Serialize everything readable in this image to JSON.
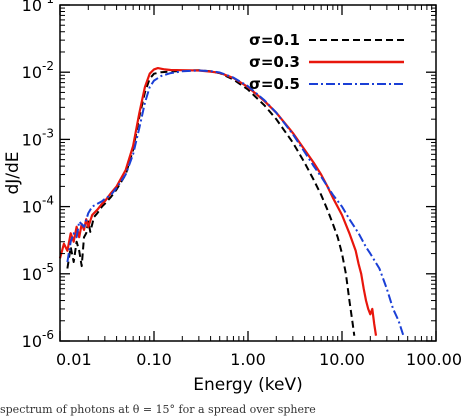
{
  "chart_data": {
    "type": "line",
    "title": "",
    "xlabel": "Energy (keV)",
    "ylabel": "dJ/dE",
    "xscale": "log",
    "yscale": "log",
    "xlim": [
      0.01,
      100
    ],
    "ylim": [
      1e-06,
      0.1
    ],
    "xticks": [
      {
        "value": 0.01,
        "label": "0.01"
      },
      {
        "value": 0.1,
        "label": "0.10"
      },
      {
        "value": 1,
        "label": "1.00"
      },
      {
        "value": 10,
        "label": "10.00"
      },
      {
        "value": 100,
        "label": "100.00"
      }
    ],
    "yticks": [
      {
        "value": 1e-06,
        "base": "10",
        "exp": "-6"
      },
      {
        "value": 1e-05,
        "base": "10",
        "exp": "-5"
      },
      {
        "value": 0.0001,
        "base": "10",
        "exp": "-4"
      },
      {
        "value": 0.001,
        "base": "10",
        "exp": "-3"
      },
      {
        "value": 0.01,
        "base": "10",
        "exp": "-2"
      },
      {
        "value": 0.1,
        "base": "10",
        "exp": "-1"
      }
    ],
    "legend_position": "top-right",
    "series": [
      {
        "name": "σ=0.1",
        "color": "#000000",
        "style": "dashed",
        "points": [
          [
            0.012,
            1.2e-05
          ],
          [
            0.013,
            2.5e-05
          ],
          [
            0.014,
            1.5e-05
          ],
          [
            0.015,
            3e-05
          ],
          [
            0.016,
            2.2e-05
          ],
          [
            0.017,
            1.3e-05
          ],
          [
            0.018,
            3.5e-05
          ],
          [
            0.019,
            4e-05
          ],
          [
            0.02,
            6e-05
          ],
          [
            0.021,
            4.2e-05
          ],
          [
            0.023,
            7e-05
          ],
          [
            0.025,
            8e-05
          ],
          [
            0.028,
            0.0001
          ],
          [
            0.03,
            0.00011
          ],
          [
            0.035,
            0.00014
          ],
          [
            0.04,
            0.00018
          ],
          [
            0.05,
            0.0003
          ],
          [
            0.06,
            0.0007
          ],
          [
            0.07,
            0.0022
          ],
          [
            0.08,
            0.005
          ],
          [
            0.09,
            0.008
          ],
          [
            0.1,
            0.0095
          ],
          [
            0.12,
            0.01
          ],
          [
            0.15,
            0.0102
          ],
          [
            0.2,
            0.0105
          ],
          [
            0.3,
            0.0107
          ],
          [
            0.4,
            0.0103
          ],
          [
            0.5,
            0.0097
          ],
          [
            0.7,
            0.0078
          ],
          [
            1.0,
            0.0055
          ],
          [
            1.5,
            0.0032
          ],
          [
            2.0,
            0.002
          ],
          [
            3.0,
            0.0009
          ],
          [
            4.0,
            0.00045
          ],
          [
            5.0,
            0.00025
          ],
          [
            6.0,
            0.00015
          ],
          [
            7.0,
            9e-05
          ],
          [
            8.0,
            5.5e-05
          ],
          [
            9.0,
            3.5e-05
          ],
          [
            10.0,
            2e-05
          ],
          [
            11.0,
            1e-05
          ],
          [
            12.0,
            4e-06
          ],
          [
            13.0,
            1.8e-06
          ],
          [
            13.5,
            1.2e-06
          ]
        ]
      },
      {
        "name": "σ=0.3",
        "color": "#e8160c",
        "style": "solid",
        "points": [
          [
            0.01,
            1.7e-05
          ],
          [
            0.011,
            2.8e-05
          ],
          [
            0.012,
            2.2e-05
          ],
          [
            0.013,
            4e-05
          ],
          [
            0.014,
            3e-05
          ],
          [
            0.015,
            5e-05
          ],
          [
            0.016,
            3.5e-05
          ],
          [
            0.017,
            5.5e-05
          ],
          [
            0.018,
            4.5e-05
          ],
          [
            0.019,
            6.5e-05
          ],
          [
            0.02,
            5e-05
          ],
          [
            0.022,
            7.5e-05
          ],
          [
            0.025,
            9e-05
          ],
          [
            0.028,
            0.00011
          ],
          [
            0.03,
            0.00012
          ],
          [
            0.035,
            0.00016
          ],
          [
            0.04,
            0.0002
          ],
          [
            0.05,
            0.00035
          ],
          [
            0.06,
            0.0008
          ],
          [
            0.07,
            0.0025
          ],
          [
            0.08,
            0.006
          ],
          [
            0.09,
            0.0095
          ],
          [
            0.1,
            0.011
          ],
          [
            0.11,
            0.0115
          ],
          [
            0.13,
            0.011
          ],
          [
            0.15,
            0.0108
          ],
          [
            0.2,
            0.0107
          ],
          [
            0.3,
            0.0106
          ],
          [
            0.4,
            0.0102
          ],
          [
            0.5,
            0.0098
          ],
          [
            0.7,
            0.0082
          ],
          [
            1.0,
            0.006
          ],
          [
            1.5,
            0.0037
          ],
          [
            2.0,
            0.0025
          ],
          [
            3.0,
            0.00125
          ],
          [
            4.0,
            0.0007
          ],
          [
            5.0,
            0.00045
          ],
          [
            6.0,
            0.0003
          ],
          [
            7.0,
            0.0002
          ],
          [
            8.0,
            0.000135
          ],
          [
            10.0,
            7.5e-05
          ],
          [
            12.0,
            4e-05
          ],
          [
            14.0,
            2.2e-05
          ],
          [
            15.0,
            1.4e-05
          ],
          [
            16.0,
            1e-05
          ],
          [
            17.0,
            6e-06
          ],
          [
            18.0,
            4e-06
          ],
          [
            19.0,
            3e-06
          ],
          [
            20.0,
            2.5e-06
          ],
          [
            21.0,
            3e-06
          ],
          [
            22.0,
            1.8e-06
          ],
          [
            23.0,
            1.2e-06
          ]
        ]
      },
      {
        "name": "σ=0.5",
        "color": "#1a3fd6",
        "style": "dashdot",
        "points": [
          [
            0.012,
            1.5e-05
          ],
          [
            0.013,
            3e-05
          ],
          [
            0.014,
            4e-05
          ],
          [
            0.015,
            3.5e-05
          ],
          [
            0.016,
            6e-05
          ],
          [
            0.018,
            5e-05
          ],
          [
            0.02,
            8e-05
          ],
          [
            0.022,
            0.0001
          ],
          [
            0.025,
            0.00011
          ],
          [
            0.028,
            0.00012
          ],
          [
            0.03,
            0.00013
          ],
          [
            0.035,
            0.00015
          ],
          [
            0.04,
            0.00019
          ],
          [
            0.05,
            0.0003
          ],
          [
            0.06,
            0.0006
          ],
          [
            0.07,
            0.0015
          ],
          [
            0.08,
            0.0035
          ],
          [
            0.09,
            0.006
          ],
          [
            0.1,
            0.0075
          ],
          [
            0.12,
            0.0088
          ],
          [
            0.15,
            0.0097
          ],
          [
            0.2,
            0.0103
          ],
          [
            0.3,
            0.0106
          ],
          [
            0.4,
            0.0104
          ],
          [
            0.5,
            0.0099
          ],
          [
            0.7,
            0.0083
          ],
          [
            1.0,
            0.0062
          ],
          [
            1.5,
            0.0038
          ],
          [
            2.0,
            0.0025
          ],
          [
            3.0,
            0.0012
          ],
          [
            4.0,
            0.00065
          ],
          [
            5.0,
            0.0004
          ],
          [
            6.0,
            0.00028
          ],
          [
            7.0,
            0.0002
          ],
          [
            8.0,
            0.00015
          ],
          [
            10.0,
            0.0001
          ],
          [
            12.0,
            6.5e-05
          ],
          [
            15.0,
            4e-05
          ],
          [
            18.0,
            2.5e-05
          ],
          [
            20.0,
            2e-05
          ],
          [
            25.0,
            1.2e-05
          ],
          [
            30.0,
            6e-06
          ],
          [
            35.0,
            3e-06
          ],
          [
            40.0,
            2e-06
          ],
          [
            45.0,
            1.2e-06
          ]
        ]
      }
    ]
  },
  "caption": "spectrum of photons at θ = 15° for a spread over sphere"
}
